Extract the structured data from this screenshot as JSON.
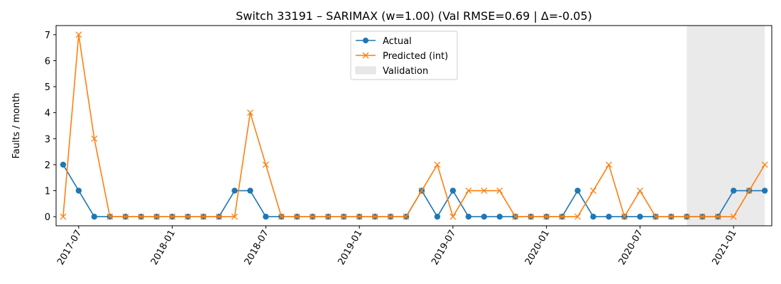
{
  "chart_data": {
    "type": "line",
    "title": "Switch 33191 – SARIMAX (w=1.00) (Val RMSE=0.69 | Δ=-0.05)",
    "xlabel": "",
    "ylabel": "Faults / month",
    "ylim": [
      -0.35,
      7.35
    ],
    "y_ticks": [
      "0",
      "1",
      "2",
      "3",
      "4",
      "5",
      "6",
      "7"
    ],
    "x_ticks": [
      "2017-07",
      "2018-01",
      "2018-07",
      "2019-01",
      "2019-07",
      "2020-01",
      "2020-07",
      "2021-01"
    ],
    "x_tick_month_index": [
      1,
      7,
      13,
      19,
      25,
      31,
      37,
      43
    ],
    "x_range_month_index": [
      -0.45,
      45.45
    ],
    "validation_span_month_index": [
      40,
      45
    ],
    "categories": [
      "2017-06",
      "2017-07",
      "2017-08",
      "2017-09",
      "2017-10",
      "2017-11",
      "2017-12",
      "2018-01",
      "2018-02",
      "2018-03",
      "2018-04",
      "2018-05",
      "2018-06",
      "2018-07",
      "2018-08",
      "2018-09",
      "2018-10",
      "2018-11",
      "2018-12",
      "2019-01",
      "2019-02",
      "2019-03",
      "2019-04",
      "2019-05",
      "2019-06",
      "2019-07",
      "2019-08",
      "2019-09",
      "2019-10",
      "2019-11",
      "2019-12",
      "2020-01",
      "2020-02",
      "2020-03",
      "2020-04",
      "2020-05",
      "2020-06",
      "2020-07",
      "2020-08",
      "2020-09",
      "2020-10",
      "2020-11",
      "2020-12",
      "2021-01",
      "2021-02",
      "2021-03"
    ],
    "series": [
      {
        "name": "Actual",
        "color": "#1f77b4",
        "marker": "circle",
        "values": [
          2,
          1,
          0,
          0,
          0,
          0,
          0,
          0,
          0,
          0,
          0,
          1,
          1,
          0,
          0,
          0,
          0,
          0,
          0,
          0,
          0,
          0,
          0,
          1,
          0,
          1,
          0,
          0,
          0,
          0,
          0,
          0,
          0,
          1,
          0,
          0,
          0,
          0,
          0,
          0,
          0,
          0,
          0,
          1,
          1,
          1
        ]
      },
      {
        "name": "Predicted (int)",
        "color": "#ff7f0e",
        "marker": "x",
        "values": [
          0,
          7,
          3,
          0,
          0,
          0,
          0,
          0,
          0,
          0,
          0,
          0,
          4,
          2,
          0,
          0,
          0,
          0,
          0,
          0,
          0,
          0,
          0,
          1,
          2,
          0,
          1,
          1,
          1,
          0,
          0,
          0,
          0,
          0,
          1,
          2,
          0,
          1,
          0,
          0,
          0,
          0,
          0,
          0,
          1,
          2
        ]
      }
    ],
    "legend": {
      "placement": "top-center",
      "entries": [
        "Actual",
        "Predicted (int)",
        "Validation"
      ]
    },
    "validation_color": "#e8e8e8",
    "grid": false
  }
}
